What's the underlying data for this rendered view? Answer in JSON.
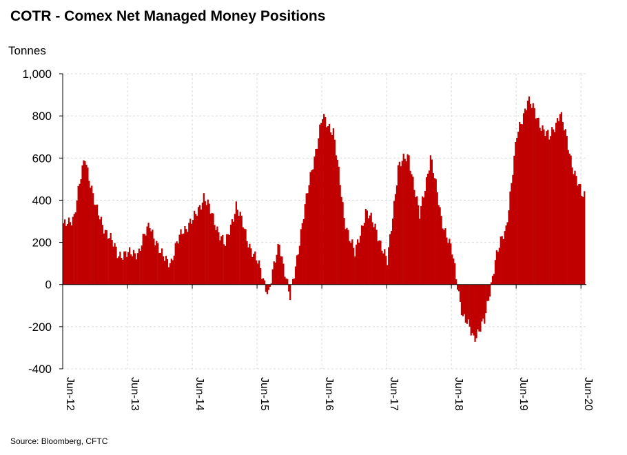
{
  "title": "COTR - Comex Net Managed Money Positions",
  "unit_label": "Tonnes",
  "source": "Source: Bloomberg, CFTC",
  "chart_data": {
    "type": "bar",
    "ylabel": "Tonnes",
    "ylim": [
      -400,
      1000
    ],
    "yticks": [
      -400,
      -200,
      0,
      200,
      400,
      600,
      800,
      1000
    ],
    "ytick_labels": [
      "-400",
      "-200",
      "0",
      "200",
      "400",
      "600",
      "800",
      "1,000"
    ],
    "xtick_labels": [
      "Jun-12",
      "Jun-13",
      "Jun-14",
      "Jun-15",
      "Jun-16",
      "Jun-17",
      "Jun-18",
      "Jun-19",
      "Jun-20"
    ],
    "x_start": "2012-06",
    "x_end": "2020-07",
    "bar_color": "#C00000",
    "grid": true,
    "x": [
      "2012-06",
      "2012-08",
      "2012-10",
      "2012-12",
      "2013-02",
      "2013-04",
      "2013-06",
      "2013-08",
      "2013-10",
      "2013-12",
      "2014-02",
      "2014-04",
      "2014-06",
      "2014-08",
      "2014-10",
      "2014-12",
      "2015-02",
      "2015-04",
      "2015-06",
      "2015-08",
      "2015-10",
      "2015-12",
      "2016-02",
      "2016-04",
      "2016-06",
      "2016-08",
      "2016-10",
      "2016-12",
      "2017-02",
      "2017-04",
      "2017-06",
      "2017-08",
      "2017-10",
      "2017-12",
      "2018-02",
      "2018-04",
      "2018-06",
      "2018-08",
      "2018-10",
      "2018-12",
      "2019-02",
      "2019-04",
      "2019-06",
      "2019-08",
      "2019-10",
      "2019-12",
      "2020-02",
      "2020-04",
      "2020-06"
    ],
    "values": [
      270,
      330,
      610,
      360,
      250,
      150,
      140,
      160,
      290,
      140,
      110,
      260,
      300,
      420,
      300,
      180,
      380,
      220,
      100,
      -40,
      200,
      -70,
      250,
      550,
      790,
      730,
      320,
      140,
      350,
      260,
      100,
      560,
      610,
      320,
      610,
      320,
      150,
      -150,
      -250,
      -180,
      120,
      270,
      700,
      880,
      780,
      690,
      820,
      600,
      420
    ]
  }
}
